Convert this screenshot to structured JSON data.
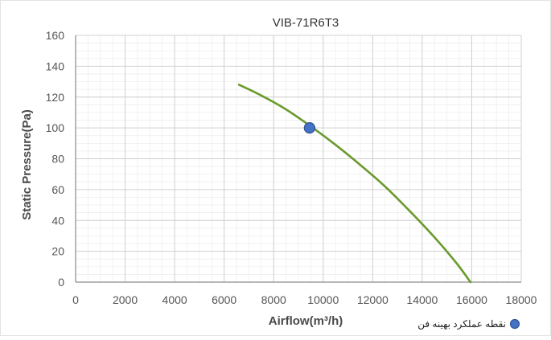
{
  "chart_data": {
    "type": "line",
    "title": "VIB-71R6T3",
    "xlabel": "Airflow(m³/h)",
    "ylabel": "Static Pressure(Pa)",
    "xlim": [
      0,
      18000
    ],
    "ylim": [
      0,
      160
    ],
    "x_ticks": [
      0,
      2000,
      4000,
      6000,
      8000,
      10000,
      12000,
      14000,
      16000,
      18000
    ],
    "y_ticks": [
      0,
      20,
      40,
      60,
      80,
      100,
      120,
      140,
      160
    ],
    "grid": true,
    "series": [
      {
        "color": "#6b9a2e",
        "points": [
          {
            "x": 6600,
            "y": 128
          },
          {
            "x": 7500,
            "y": 121
          },
          {
            "x": 8500,
            "y": 112
          },
          {
            "x": 9500,
            "y": 101
          },
          {
            "x": 10500,
            "y": 89
          },
          {
            "x": 11500,
            "y": 76
          },
          {
            "x": 12500,
            "y": 62
          },
          {
            "x": 13500,
            "y": 46
          },
          {
            "x": 14500,
            "y": 29
          },
          {
            "x": 15400,
            "y": 12
          },
          {
            "x": 15950,
            "y": 0
          }
        ]
      }
    ],
    "optimal_point": {
      "x": 9450,
      "y": 100,
      "color": "#4472c4"
    },
    "legend": {
      "position": "bottom-right",
      "label": "نقطه عملکرد بهینه فن"
    }
  }
}
